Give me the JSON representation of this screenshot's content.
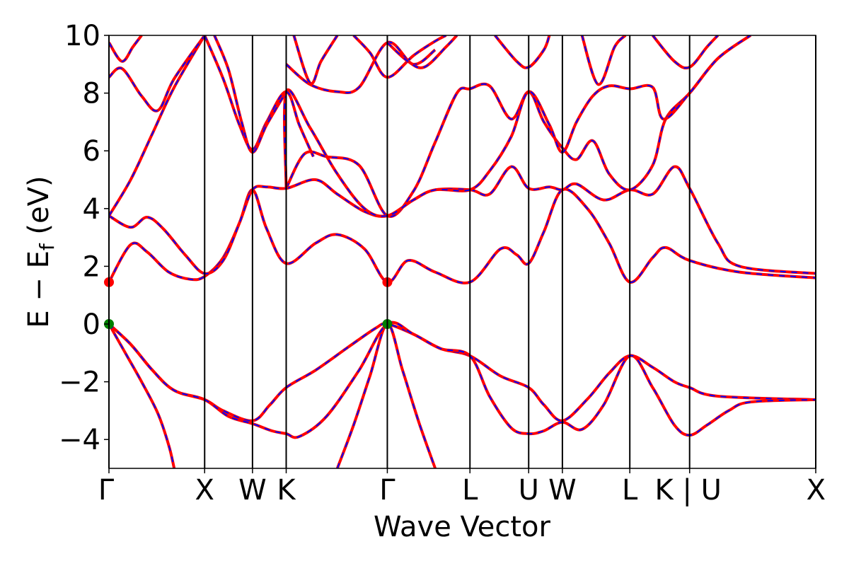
{
  "chart_data": {
    "type": "line",
    "xlabel": "Wave Vector",
    "ylabel": "E − E",
    "ylabel_subscript": "f",
    "ylabel_unit": " (eV)",
    "ylim": [
      -5,
      10
    ],
    "yticks": [
      -4,
      -2,
      0,
      2,
      4,
      6,
      8,
      10
    ],
    "ytick_labels": [
      "−4",
      "−2",
      "0",
      "2",
      "4",
      "6",
      "8",
      "10"
    ],
    "xlim": [
      0,
      6.5
    ],
    "kpoints": [
      {
        "label": "Γ",
        "x": 0
      },
      {
        "label": "X",
        "x": 0.88
      },
      {
        "label": "W",
        "x": 1.32
      },
      {
        "label": "K",
        "x": 1.63
      },
      {
        "label": "Γ",
        "x": 2.56
      },
      {
        "label": "L",
        "x": 3.32
      },
      {
        "label": "U",
        "x": 3.86
      },
      {
        "label": "W",
        "x": 4.17
      },
      {
        "label": "L",
        "x": 4.79
      },
      {
        "label": "K | U",
        "x": 5.34
      },
      {
        "label": "X",
        "x": 6.5
      }
    ],
    "colors": {
      "band": "#ff0000",
      "dash": "#0000ff",
      "vbm": "#008000",
      "cbm": "#ff0000",
      "axis": "#000000"
    },
    "band_extrema": {
      "vbm": [
        {
          "x": 0,
          "y": 0
        },
        {
          "x": 2.56,
          "y": 0
        }
      ],
      "cbm": [
        {
          "x": 0,
          "y": 1.45
        },
        {
          "x": 2.56,
          "y": 1.45
        }
      ]
    },
    "series": [
      {
        "values": [
          [
            0,
            0
          ],
          [
            0.15,
            -1.0
          ],
          [
            0.3,
            -2.0
          ],
          [
            0.45,
            -3.1
          ],
          [
            0.55,
            -4.2
          ],
          [
            0.6,
            -5
          ]
        ]
      },
      {
        "values": [
          [
            2.1,
            -5
          ],
          [
            2.25,
            -3.5
          ],
          [
            2.4,
            -1.8
          ],
          [
            2.56,
            0
          ],
          [
            2.7,
            -1.6
          ],
          [
            2.85,
            -3.4
          ],
          [
            3.0,
            -5
          ]
        ]
      },
      {
        "values": [
          [
            0,
            0
          ],
          [
            0.2,
            -0.7
          ],
          [
            0.4,
            -1.6
          ],
          [
            0.6,
            -2.3
          ],
          [
            0.88,
            -2.62
          ],
          [
            1.05,
            -3.0
          ],
          [
            1.32,
            -3.35
          ],
          [
            1.48,
            -2.8
          ],
          [
            1.63,
            -2.2
          ],
          [
            1.9,
            -1.6
          ],
          [
            2.2,
            -0.8
          ],
          [
            2.45,
            -0.15
          ],
          [
            2.56,
            0
          ],
          [
            2.8,
            -0.35
          ],
          [
            3.05,
            -0.85
          ],
          [
            3.32,
            -1.1
          ],
          [
            3.6,
            -1.8
          ],
          [
            3.86,
            -2.2
          ],
          [
            4.0,
            -2.8
          ],
          [
            4.17,
            -3.35
          ],
          [
            4.4,
            -2.6
          ],
          [
            4.6,
            -1.7
          ],
          [
            4.79,
            -1.1
          ],
          [
            5.0,
            -1.5
          ],
          [
            5.2,
            -2.0
          ],
          [
            5.34,
            -2.2
          ],
          [
            5.6,
            -2.5
          ],
          [
            6.5,
            -2.62
          ]
        ]
      },
      {
        "values": [
          [
            0,
            0
          ],
          [
            0.2,
            -0.7
          ],
          [
            0.4,
            -1.6
          ],
          [
            0.6,
            -2.3
          ],
          [
            0.88,
            -2.62
          ],
          [
            1.1,
            -3.2
          ],
          [
            1.32,
            -3.45
          ],
          [
            1.5,
            -3.7
          ],
          [
            1.63,
            -3.8
          ],
          [
            1.75,
            -3.9
          ],
          [
            2.0,
            -3.2
          ],
          [
            2.3,
            -1.6
          ],
          [
            2.56,
            0
          ],
          [
            2.8,
            -0.35
          ],
          [
            3.05,
            -0.85
          ],
          [
            3.32,
            -1.1
          ],
          [
            3.5,
            -2.5
          ],
          [
            3.7,
            -3.6
          ],
          [
            3.86,
            -3.8
          ],
          [
            4.0,
            -3.7
          ],
          [
            4.17,
            -3.4
          ],
          [
            4.35,
            -3.65
          ],
          [
            4.55,
            -2.8
          ],
          [
            4.79,
            -1.1
          ],
          [
            5.0,
            -2.2
          ],
          [
            5.2,
            -3.5
          ],
          [
            5.34,
            -3.85
          ],
          [
            5.5,
            -3.5
          ],
          [
            5.7,
            -3.0
          ],
          [
            5.9,
            -2.7
          ],
          [
            6.5,
            -2.62
          ]
        ]
      },
      {
        "values": [
          [
            0,
            1.45
          ],
          [
            0.2,
            2.75
          ],
          [
            0.35,
            2.5
          ],
          [
            0.55,
            1.8
          ],
          [
            0.75,
            1.55
          ],
          [
            0.88,
            1.65
          ],
          [
            1.05,
            2.3
          ],
          [
            1.2,
            3.5
          ],
          [
            1.32,
            4.65
          ],
          [
            1.45,
            3.3
          ],
          [
            1.63,
            2.1
          ],
          [
            1.9,
            2.8
          ],
          [
            2.1,
            3.1
          ],
          [
            2.35,
            2.6
          ],
          [
            2.56,
            1.45
          ],
          [
            2.75,
            2.2
          ],
          [
            3.0,
            1.8
          ],
          [
            3.32,
            1.45
          ],
          [
            3.6,
            2.6
          ],
          [
            3.75,
            2.4
          ],
          [
            3.86,
            2.1
          ],
          [
            4.0,
            3.2
          ],
          [
            4.17,
            4.65
          ],
          [
            4.4,
            4.0
          ],
          [
            4.6,
            2.8
          ],
          [
            4.79,
            1.45
          ],
          [
            5.0,
            2.3
          ],
          [
            5.12,
            2.65
          ],
          [
            5.34,
            2.2
          ],
          [
            5.8,
            1.8
          ],
          [
            6.5,
            1.6
          ]
        ]
      },
      {
        "values": [
          [
            0,
            3.75
          ],
          [
            0.2,
            3.35
          ],
          [
            0.35,
            3.7
          ],
          [
            0.5,
            3.3
          ],
          [
            0.7,
            2.4
          ],
          [
            0.88,
            1.75
          ],
          [
            1.05,
            2.2
          ],
          [
            1.2,
            3.5
          ],
          [
            1.32,
            4.65
          ],
          [
            1.45,
            4.75
          ],
          [
            1.63,
            4.7
          ],
          [
            1.9,
            5.0
          ],
          [
            2.1,
            4.5
          ],
          [
            2.35,
            3.9
          ],
          [
            2.56,
            3.75
          ],
          [
            2.8,
            4.3
          ],
          [
            3.0,
            4.65
          ],
          [
            3.32,
            4.65
          ],
          [
            3.5,
            4.5
          ],
          [
            3.7,
            5.45
          ],
          [
            3.86,
            4.7
          ],
          [
            4.05,
            4.75
          ],
          [
            4.17,
            4.65
          ],
          [
            4.3,
            4.85
          ],
          [
            4.55,
            4.3
          ],
          [
            4.79,
            4.65
          ],
          [
            5.0,
            4.5
          ],
          [
            5.2,
            5.45
          ],
          [
            5.34,
            4.7
          ],
          [
            5.6,
            2.8
          ],
          [
            5.8,
            2.0
          ],
          [
            6.5,
            1.75
          ]
        ]
      },
      {
        "values": [
          [
            0,
            3.75
          ],
          [
            0.2,
            5.0
          ],
          [
            0.4,
            6.6
          ],
          [
            0.6,
            8.2
          ],
          [
            0.88,
            10
          ]
        ]
      },
      {
        "values": [
          [
            1.63,
            4.7
          ],
          [
            1.8,
            5.9
          ],
          [
            2.0,
            5.8
          ],
          [
            2.3,
            5.5
          ],
          [
            2.56,
            3.75
          ],
          [
            2.8,
            4.6
          ],
          [
            3.0,
            6.3
          ],
          [
            3.2,
            8.0
          ],
          [
            3.32,
            8.15
          ],
          [
            3.5,
            8.25
          ],
          [
            3.7,
            7.1
          ],
          [
            3.86,
            8.05
          ],
          [
            4.0,
            7.0
          ],
          [
            4.17,
            6.1
          ],
          [
            4.3,
            5.7
          ],
          [
            4.45,
            6.35
          ],
          [
            4.6,
            5.2
          ],
          [
            4.79,
            4.65
          ],
          [
            5.0,
            5.5
          ],
          [
            5.12,
            7.1
          ],
          [
            5.34,
            8.0
          ],
          [
            5.6,
            9.2
          ],
          [
            5.9,
            10
          ]
        ]
      },
      {
        "values": [
          [
            1.63,
            4.7
          ],
          [
            1.63,
            8.05
          ],
          [
            1.85,
            6.8
          ],
          [
            2.1,
            5.2
          ],
          [
            2.35,
            4.0
          ],
          [
            2.56,
            3.75
          ],
          [
            2.8,
            4.3
          ],
          [
            3.0,
            4.65
          ],
          [
            3.32,
            4.65
          ],
          [
            3.5,
            5.3
          ],
          [
            3.7,
            6.5
          ],
          [
            3.86,
            8.05
          ],
          [
            4.05,
            6.9
          ],
          [
            4.17,
            5.95
          ],
          [
            4.3,
            7.0
          ],
          [
            4.45,
            7.9
          ],
          [
            4.6,
            8.25
          ],
          [
            4.79,
            8.15
          ],
          [
            5.0,
            8.2
          ],
          [
            5.1,
            7.1
          ],
          [
            5.34,
            8.0
          ],
          [
            5.6,
            9.2
          ],
          [
            5.9,
            10
          ]
        ]
      },
      {
        "values": [
          [
            0,
            8.55
          ],
          [
            0.12,
            8.85
          ],
          [
            0.3,
            7.9
          ],
          [
            0.45,
            7.4
          ],
          [
            0.6,
            8.5
          ],
          [
            0.88,
            10
          ]
        ]
      },
      {
        "values": [
          [
            0,
            9.75
          ],
          [
            0.12,
            9.1
          ],
          [
            0.22,
            9.6
          ],
          [
            0.3,
            10
          ]
        ]
      },
      {
        "values": [
          [
            0.88,
            10
          ],
          [
            1.05,
            8.5
          ],
          [
            1.2,
            6.9
          ],
          [
            1.32,
            6.05
          ],
          [
            1.45,
            7.0
          ],
          [
            1.63,
            8.05
          ],
          [
            1.75,
            6.9
          ],
          [
            1.88,
            5.8
          ]
        ]
      },
      {
        "values": [
          [
            0.97,
            10
          ],
          [
            1.1,
            8.8
          ],
          [
            1.22,
            7.0
          ],
          [
            1.32,
            5.95
          ],
          [
            1.45,
            6.9
          ],
          [
            1.63,
            8.05
          ]
        ]
      },
      {
        "values": [
          [
            1.7,
            10
          ],
          [
            1.85,
            8.35
          ],
          [
            1.95,
            9.1
          ],
          [
            2.1,
            10
          ]
        ]
      },
      {
        "values": [
          [
            1.63,
            9.0
          ],
          [
            1.85,
            8.3
          ],
          [
            2.1,
            8.05
          ],
          [
            2.3,
            8.2
          ],
          [
            2.56,
            9.75
          ],
          [
            2.8,
            9.0
          ],
          [
            3.0,
            9.5
          ]
        ]
      },
      {
        "values": [
          [
            2.25,
            10
          ],
          [
            2.4,
            9.4
          ],
          [
            2.56,
            8.55
          ],
          [
            2.8,
            9.3
          ],
          [
            3.0,
            9.8
          ],
          [
            3.1,
            10
          ]
        ]
      },
      {
        "values": [
          [
            2.56,
            9.75
          ],
          [
            2.75,
            9.1
          ],
          [
            2.9,
            8.9
          ],
          [
            3.1,
            9.6
          ],
          [
            3.2,
            10
          ]
        ]
      },
      {
        "values": [
          [
            3.55,
            10
          ],
          [
            3.75,
            9.1
          ],
          [
            3.86,
            8.9
          ],
          [
            4.0,
            9.5
          ],
          [
            4.05,
            10
          ]
        ]
      },
      {
        "values": [
          [
            4.35,
            10
          ],
          [
            4.5,
            8.3
          ],
          [
            4.65,
            9.6
          ],
          [
            4.75,
            10
          ]
        ]
      },
      {
        "values": [
          [
            5.0,
            10
          ],
          [
            5.2,
            9.1
          ],
          [
            5.34,
            8.9
          ],
          [
            5.5,
            9.6
          ],
          [
            5.6,
            10
          ]
        ]
      }
    ]
  }
}
